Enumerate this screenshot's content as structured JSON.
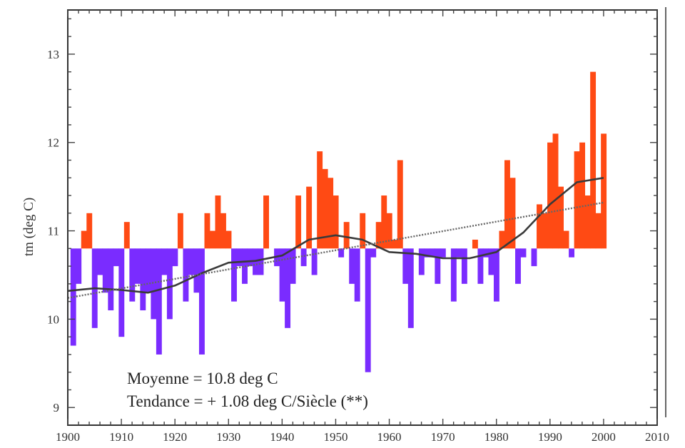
{
  "chart_data": {
    "type": "area",
    "ylabel": "tm (deg C)",
    "xlim": [
      1900,
      2010
    ],
    "ylim": [
      8.8,
      13.5
    ],
    "x_ticks": [
      1900,
      1910,
      1920,
      1930,
      1940,
      1950,
      1960,
      1970,
      1980,
      1990,
      2000,
      2010
    ],
    "x_tick_labels": [
      "1900",
      "1910",
      "1920",
      "1930",
      "1940",
      "1950",
      "1960",
      "1970",
      "1980",
      "1990",
      "2000",
      "2010"
    ],
    "y_ticks": [
      9,
      10,
      11,
      12,
      13
    ],
    "y_tick_labels": [
      "9",
      "10",
      "11",
      "12",
      "13"
    ],
    "mean": 10.8,
    "anomaly_colors": {
      "above": "#ff4a14",
      "below": "#7a2cff"
    },
    "series": [
      {
        "x": [
          1901,
          1902,
          1903,
          1904,
          1905,
          1906,
          1907,
          1908,
          1909,
          1910,
          1911,
          1912,
          1913,
          1914,
          1915,
          1916,
          1917,
          1918,
          1919,
          1920,
          1921,
          1922,
          1923,
          1924,
          1925,
          1926,
          1927,
          1928,
          1929,
          1930,
          1931,
          1932,
          1933,
          1934,
          1935,
          1936,
          1937,
          1938,
          1939,
          1940,
          1941,
          1942,
          1943,
          1944,
          1945,
          1946,
          1947,
          1948,
          1949,
          1950,
          1951,
          1952,
          1953,
          1954,
          1955,
          1956,
          1957,
          1958,
          1959,
          1960,
          1961,
          1962,
          1963,
          1964,
          1965,
          1966,
          1967,
          1968,
          1969,
          1970,
          1971,
          1972,
          1973,
          1974,
          1975,
          1976,
          1977,
          1978,
          1979,
          1980,
          1981,
          1982,
          1983,
          1984,
          1985,
          1986,
          1987,
          1988,
          1989,
          1990,
          1991,
          1992,
          1993,
          1994,
          1995,
          1996,
          1997,
          1998,
          1999,
          2000
        ],
        "values": [
          9.7,
          10.4,
          11.0,
          11.2,
          9.9,
          10.5,
          10.3,
          10.1,
          10.6,
          9.8,
          11.1,
          10.2,
          10.4,
          10.1,
          10.3,
          10.0,
          9.6,
          10.5,
          10.0,
          10.6,
          11.2,
          10.2,
          10.5,
          10.3,
          9.6,
          11.2,
          11.0,
          11.4,
          11.2,
          11.0,
          10.2,
          10.6,
          10.4,
          10.6,
          10.5,
          10.5,
          11.4,
          10.8,
          10.6,
          10.2,
          9.9,
          10.4,
          11.4,
          10.6,
          11.5,
          10.5,
          11.9,
          11.7,
          11.6,
          11.4,
          10.7,
          11.1,
          10.4,
          10.2,
          11.2,
          9.4,
          10.7,
          11.1,
          11.4,
          11.2,
          10.9,
          11.8,
          10.4,
          9.9,
          10.8,
          10.5,
          10.7,
          10.7,
          10.4,
          10.7,
          10.8,
          10.2,
          10.7,
          10.4,
          10.8,
          10.9,
          10.4,
          10.7,
          10.5,
          10.2,
          11.0,
          11.8,
          11.6,
          10.4,
          10.7,
          10.8,
          10.6,
          11.3,
          11.2,
          12.0,
          12.1,
          11.5,
          11.0,
          10.7,
          11.9,
          12.0,
          11.4,
          12.8,
          11.2,
          12.1
        ]
      },
      {
        "x": [
          1900,
          1905,
          1910,
          1915,
          1920,
          1925,
          1930,
          1935,
          1940,
          1945,
          1950,
          1955,
          1960,
          1965,
          1970,
          1975,
          1980,
          1985,
          1990,
          1995,
          2000
        ],
        "values": [
          10.32,
          10.35,
          10.33,
          10.3,
          10.38,
          10.52,
          10.64,
          10.66,
          10.72,
          10.9,
          10.95,
          10.9,
          10.76,
          10.74,
          10.69,
          10.69,
          10.76,
          10.98,
          11.3,
          11.55,
          11.6
        ]
      },
      {
        "x": [
          1900,
          2000
        ],
        "values": [
          10.24,
          11.32
        ]
      }
    ],
    "annotations": [
      "Moyenne = 10.8 deg C",
      "Tendance = + 1.08 deg C/Siècle (**)"
    ]
  }
}
